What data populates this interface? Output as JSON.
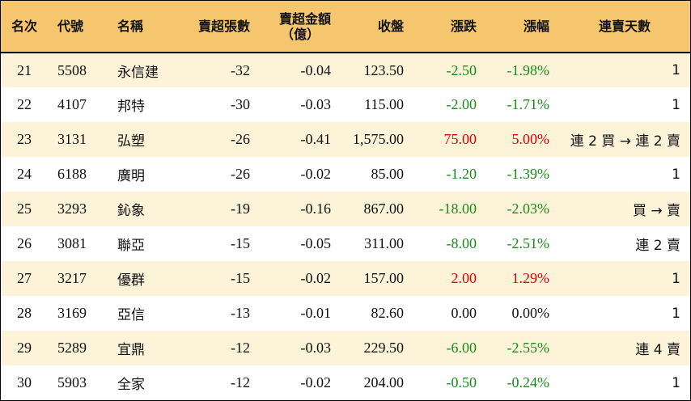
{
  "colors": {
    "header_bg": "#f6c66e",
    "odd_row_bg": "#fdf3d9",
    "even_row_bg": "#ffffff",
    "up": "#e00000",
    "down": "#1a8a1a",
    "flat": "#111111"
  },
  "headers": {
    "rank": "名次",
    "code": "代號",
    "name": "名稱",
    "net_sell_lots": "賣超張數",
    "net_sell_amount_line1": "賣超金額",
    "net_sell_amount_line2": "（億）",
    "close": "收盤",
    "change": "漲跌",
    "change_pct": "漲幅",
    "streak": "連賣天數"
  },
  "rows": [
    {
      "rank": "21",
      "code": "5508",
      "name": "永信建",
      "lots": "-32",
      "amount": "-0.04",
      "close": "123.50",
      "change": "-2.50",
      "pct": "-1.98%",
      "dir": "down",
      "streak": "1"
    },
    {
      "rank": "22",
      "code": "4107",
      "name": "邦特",
      "lots": "-30",
      "amount": "-0.03",
      "close": "115.00",
      "change": "-2.00",
      "pct": "-1.71%",
      "dir": "down",
      "streak": "1"
    },
    {
      "rank": "23",
      "code": "3131",
      "name": "弘塑",
      "lots": "-26",
      "amount": "-0.41",
      "close": "1,575.00",
      "change": "75.00",
      "pct": "5.00%",
      "dir": "up",
      "streak": "連 2 買 → 連 2 賣"
    },
    {
      "rank": "24",
      "code": "6188",
      "name": "廣明",
      "lots": "-26",
      "amount": "-0.02",
      "close": "85.00",
      "change": "-1.20",
      "pct": "-1.39%",
      "dir": "down",
      "streak": "1"
    },
    {
      "rank": "25",
      "code": "3293",
      "name": "鈊象",
      "lots": "-19",
      "amount": "-0.16",
      "close": "867.00",
      "change": "-18.00",
      "pct": "-2.03%",
      "dir": "down",
      "streak": "買 → 賣"
    },
    {
      "rank": "26",
      "code": "3081",
      "name": "聯亞",
      "lots": "-15",
      "amount": "-0.05",
      "close": "311.00",
      "change": "-8.00",
      "pct": "-2.51%",
      "dir": "down",
      "streak": "連 2 賣"
    },
    {
      "rank": "27",
      "code": "3217",
      "name": "優群",
      "lots": "-15",
      "amount": "-0.02",
      "close": "157.00",
      "change": "2.00",
      "pct": "1.29%",
      "dir": "up",
      "streak": "1"
    },
    {
      "rank": "28",
      "code": "3169",
      "name": "亞信",
      "lots": "-13",
      "amount": "-0.01",
      "close": "82.60",
      "change": "0.00",
      "pct": "0.00%",
      "dir": "flat",
      "streak": "1"
    },
    {
      "rank": "29",
      "code": "5289",
      "name": "宜鼎",
      "lots": "-12",
      "amount": "-0.03",
      "close": "229.50",
      "change": "-6.00",
      "pct": "-2.55%",
      "dir": "down",
      "streak": "連 4 賣"
    },
    {
      "rank": "30",
      "code": "5903",
      "name": "全家",
      "lots": "-12",
      "amount": "-0.02",
      "close": "204.00",
      "change": "-0.50",
      "pct": "-0.24%",
      "dir": "down",
      "streak": "1"
    }
  ]
}
